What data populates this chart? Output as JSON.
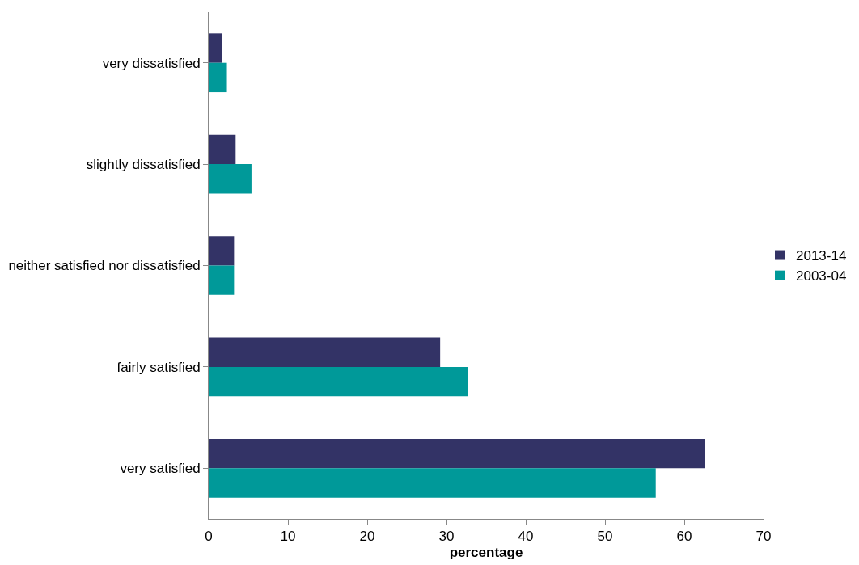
{
  "chart_data": {
    "type": "bar",
    "orientation": "horizontal",
    "xlabel": "percentage",
    "categories": [
      "very dissatisfied",
      "slightly dissatisfied",
      "neither satisfied nor dissatisfied",
      "fairly satisfied",
      "very satisfied"
    ],
    "series": [
      {
        "name": "2013-14",
        "color": "#333366",
        "values": [
          1.7,
          3.4,
          3.2,
          29.2,
          62.6
        ]
      },
      {
        "name": "2003-04",
        "color": "#009999",
        "values": [
          2.3,
          5.4,
          3.2,
          32.7,
          56.4
        ]
      }
    ],
    "xlim": [
      0,
      70
    ],
    "xticks": [
      0,
      10,
      20,
      30,
      40,
      50,
      60,
      70
    ],
    "legend": "right"
  }
}
